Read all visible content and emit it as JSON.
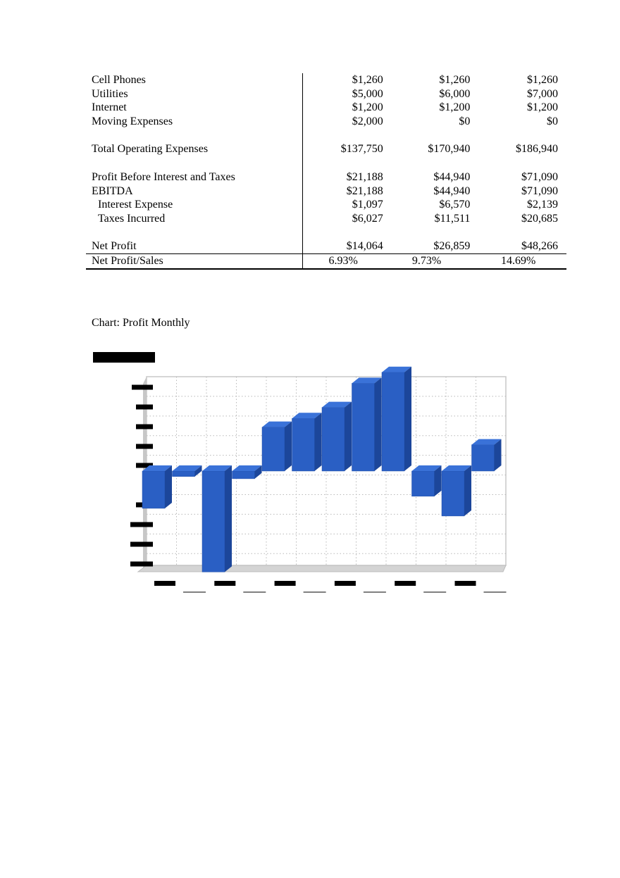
{
  "table": {
    "rows": [
      {
        "label": "Cell Phones",
        "values": [
          "$1,260",
          "$1,260",
          "$1,260"
        ]
      },
      {
        "label": "Utilities",
        "values": [
          "$5,000",
          "$6,000",
          "$7,000"
        ]
      },
      {
        "label": "Internet",
        "values": [
          "$1,200",
          "$1,200",
          "$1,200"
        ]
      },
      {
        "label": "Moving Expenses",
        "values": [
          "$2,000",
          "$0",
          "$0"
        ]
      },
      {
        "spacer": true
      },
      {
        "label": "Total Operating Expenses",
        "values": [
          "$137,750",
          "$170,940",
          "$186,940"
        ]
      },
      {
        "spacer": true
      },
      {
        "label": "Profit Before Interest and Taxes",
        "values": [
          "$21,188",
          "$44,940",
          "$71,090"
        ]
      },
      {
        "label": "EBITDA",
        "values": [
          "$21,188",
          "$44,940",
          "$71,090"
        ]
      },
      {
        "label": "Interest Expense",
        "values": [
          "$1,097",
          "$6,570",
          "$2,139"
        ],
        "indent": true
      },
      {
        "label": "Taxes Incurred",
        "values": [
          "$6,027",
          "$11,511",
          "$20,685"
        ],
        "indent": true
      },
      {
        "spacer": true
      },
      {
        "label": "Net Profit",
        "values": [
          "$14,064",
          "$26,859",
          "$48,266"
        ],
        "cls": "net-profit"
      },
      {
        "label": "Net Profit/Sales",
        "values": [
          "6.93%",
          "9.73%",
          "14.69%"
        ],
        "cls": "net-sales"
      }
    ]
  },
  "chart_caption": "Chart: Profit Monthly",
  "chart_data": {
    "type": "bar",
    "title": "",
    "note": "Axis tick labels and title are redacted (blacked out) in the original image; values are relative estimates.",
    "categories": [
      "",
      "",
      "",
      "",
      "",
      "",
      "",
      "",
      "",
      "",
      "",
      ""
    ],
    "series": [
      {
        "values": [
          -1.7,
          -0.25,
          -4.6,
          -0.35,
          2.0,
          2.4,
          2.9,
          4.0,
          4.5,
          -1.15,
          -2.05,
          1.2
        ]
      }
    ],
    "ylim": [
      -4.3,
      4.3
    ],
    "grid": true,
    "bar_color": "#2a5fc4",
    "bar_top_color": "#3a72d8",
    "bar_side_color": "#1c469a"
  }
}
